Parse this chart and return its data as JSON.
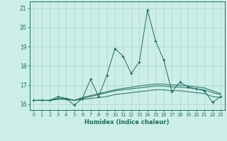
{
  "xlabel": "Humidex (Indice chaleur)",
  "x": [
    0,
    1,
    2,
    3,
    4,
    5,
    6,
    7,
    8,
    9,
    10,
    11,
    12,
    13,
    14,
    15,
    16,
    17,
    18,
    19,
    20,
    21,
    22,
    23
  ],
  "line1": [
    16.2,
    16.2,
    16.2,
    16.4,
    16.3,
    15.95,
    16.3,
    17.3,
    16.4,
    17.5,
    18.9,
    18.5,
    17.6,
    18.2,
    20.9,
    19.3,
    18.3,
    16.65,
    17.15,
    16.9,
    16.8,
    16.7,
    16.1,
    16.4
  ],
  "line2": [
    16.2,
    16.2,
    16.2,
    16.25,
    16.25,
    16.2,
    16.25,
    16.3,
    16.35,
    16.4,
    16.5,
    16.55,
    16.6,
    16.65,
    16.7,
    16.75,
    16.75,
    16.7,
    16.7,
    16.65,
    16.6,
    16.55,
    16.4,
    16.35
  ],
  "line3": [
    16.2,
    16.2,
    16.2,
    16.3,
    16.3,
    16.2,
    16.3,
    16.4,
    16.5,
    16.6,
    16.7,
    16.75,
    16.8,
    16.85,
    16.9,
    16.95,
    16.95,
    16.9,
    16.9,
    16.85,
    16.8,
    16.75,
    16.6,
    16.5
  ],
  "line4": [
    16.2,
    16.2,
    16.2,
    16.3,
    16.3,
    16.2,
    16.35,
    16.45,
    16.55,
    16.65,
    16.75,
    16.82,
    16.88,
    16.95,
    17.0,
    17.05,
    17.05,
    17.0,
    17.0,
    16.95,
    16.9,
    16.85,
    16.7,
    16.55
  ],
  "line_color": "#1e6b5e",
  "bg_color": "#cceee8",
  "grid_color": "#aad4ce",
  "ylim": [
    15.7,
    21.35
  ],
  "yticks": [
    16,
    17,
    18,
    19,
    20,
    21
  ],
  "xticks": [
    0,
    1,
    2,
    3,
    4,
    5,
    6,
    7,
    8,
    9,
    10,
    11,
    12,
    13,
    14,
    15,
    16,
    17,
    18,
    19,
    20,
    21,
    22,
    23
  ]
}
